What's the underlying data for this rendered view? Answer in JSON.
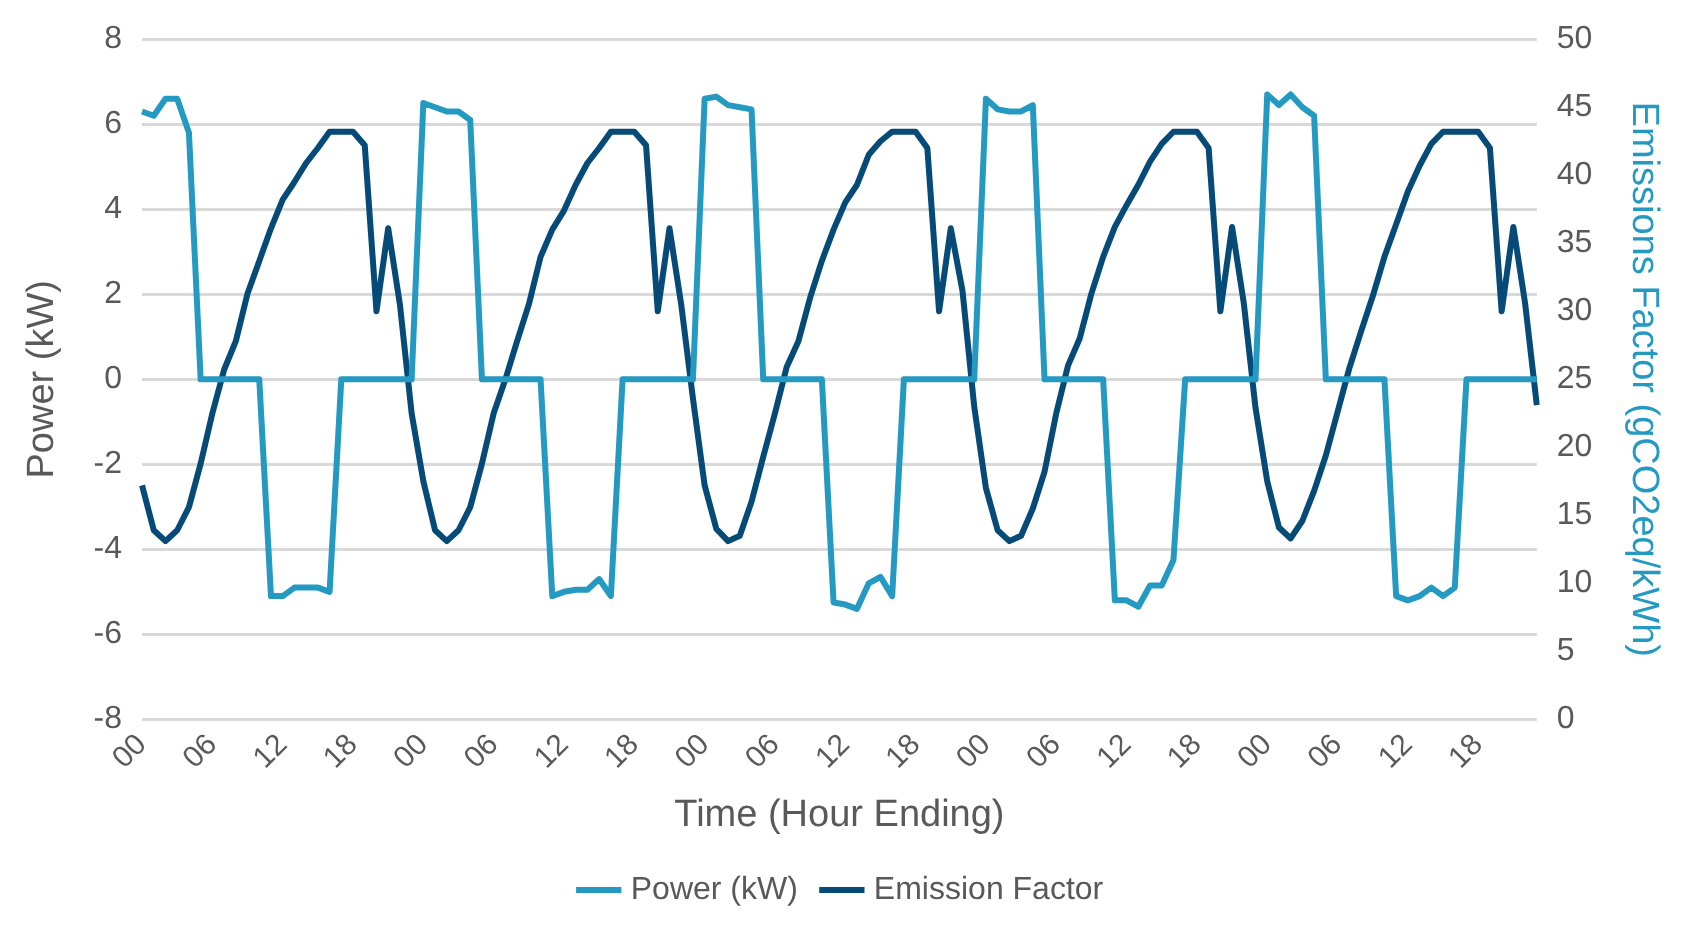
{
  "chart_data": {
    "type": "line",
    "xlabel": "Time (Hour Ending)",
    "ylabel": "Power (kW)",
    "y2label": "Emissions Factor (gCO2eq/kWh)",
    "categories": [
      "00",
      null,
      null,
      null,
      null,
      null,
      "06",
      null,
      null,
      null,
      null,
      null,
      "12",
      null,
      null,
      null,
      null,
      null,
      "18",
      null,
      null,
      null,
      null,
      null,
      "00",
      null,
      null,
      null,
      null,
      null,
      "06",
      null,
      null,
      null,
      null,
      null,
      "12",
      null,
      null,
      null,
      null,
      null,
      "18",
      null,
      null,
      null,
      null,
      null,
      "00",
      null,
      null,
      null,
      null,
      null,
      "06",
      null,
      null,
      null,
      null,
      null,
      "12",
      null,
      null,
      null,
      null,
      null,
      "18",
      null,
      null,
      null,
      null,
      null,
      "00",
      null,
      null,
      null,
      null,
      null,
      "06",
      null,
      null,
      null,
      null,
      null,
      "12",
      null,
      null,
      null,
      null,
      null,
      "18",
      null,
      null,
      null,
      null,
      null,
      "00",
      null,
      null,
      null,
      null,
      null,
      "06",
      null,
      null,
      null,
      null,
      null,
      "12",
      null,
      null,
      null,
      null,
      null,
      "18",
      null,
      null,
      null,
      null,
      null
    ],
    "series": [
      {
        "name": "Power (kW)",
        "color": "#2499c1",
        "values": [
          6.3,
          6.2,
          6.6,
          6.6,
          5.8,
          0,
          0,
          0,
          0,
          0,
          0,
          -5.1,
          -5.1,
          -4.9,
          -4.9,
          -4.9,
          -5.0,
          0,
          0,
          0,
          0,
          0,
          0,
          0,
          6.5,
          6.4,
          6.3,
          6.3,
          6.1,
          0,
          0,
          0,
          0,
          0,
          0,
          -5.1,
          -5.0,
          -4.95,
          -4.95,
          -4.7,
          -5.1,
          0,
          0,
          0,
          0,
          0,
          0,
          0,
          6.6,
          6.65,
          6.45,
          6.4,
          6.35,
          0,
          0,
          0,
          0,
          0,
          0,
          -5.25,
          -5.3,
          -5.4,
          -4.8,
          -4.65,
          -5.1,
          0,
          0,
          0,
          0,
          0,
          0,
          0,
          6.6,
          6.35,
          6.3,
          6.3,
          6.45,
          0,
          0,
          0,
          0,
          0,
          0,
          -5.2,
          -5.2,
          -5.35,
          -4.85,
          -4.85,
          -4.25,
          0,
          0,
          0,
          0,
          0,
          0,
          0,
          6.7,
          6.45,
          6.7,
          6.4,
          6.2,
          0,
          0,
          0,
          0,
          0,
          0,
          -5.1,
          -5.2,
          -5.1,
          -4.9,
          -5.1,
          -4.9,
          0,
          0,
          0,
          0,
          0,
          0,
          0
        ]
      },
      {
        "name": "Emission Factor",
        "color": "#064a78",
        "axis": "y2",
        "values": [
          17.2,
          13.9,
          13.1,
          13.9,
          15.6,
          18.8,
          22.5,
          25.7,
          27.8,
          31.3,
          33.7,
          36.1,
          38.2,
          39.5,
          40.9,
          42.0,
          43.2,
          43.2,
          43.2,
          42.2,
          30.0,
          36.1,
          30.5,
          22.5,
          17.5,
          13.9,
          13.1,
          13.9,
          15.6,
          18.8,
          22.5,
          25.0,
          27.8,
          30.5,
          34.0,
          36.0,
          37.4,
          39.3,
          40.9,
          42.0,
          43.2,
          43.2,
          43.2,
          42.2,
          30.0,
          36.1,
          30.5,
          23.6,
          17.2,
          14.0,
          13.1,
          13.5,
          16.0,
          19.3,
          22.5,
          25.9,
          27.8,
          31.0,
          33.7,
          36.0,
          38.0,
          39.3,
          41.5,
          42.5,
          43.2,
          43.2,
          43.2,
          42.0,
          30.0,
          36.1,
          31.5,
          23.0,
          17.0,
          13.9,
          13.1,
          13.5,
          15.5,
          18.2,
          22.5,
          26.0,
          28.0,
          31.3,
          34.0,
          36.2,
          37.8,
          39.3,
          41.0,
          42.3,
          43.2,
          43.2,
          43.2,
          42.0,
          30.0,
          36.2,
          30.6,
          22.9,
          17.5,
          14.1,
          13.3,
          14.6,
          16.8,
          19.4,
          22.6,
          25.8,
          28.5,
          31.1,
          34.0,
          36.4,
          38.8,
          40.7,
          42.3,
          43.2,
          43.2,
          43.2,
          43.2,
          42.0,
          30.0,
          36.2,
          30.6,
          23.1
        ]
      }
    ],
    "ylim": [
      -8,
      8
    ],
    "yticks": [
      -8,
      -6,
      -4,
      -2,
      0,
      2,
      4,
      6,
      8
    ],
    "y2lim": [
      0,
      50
    ],
    "y2ticks": [
      0,
      5,
      10,
      15,
      20,
      25,
      30,
      35,
      40,
      45,
      50
    ],
    "grid": "y",
    "legend": "bottom",
    "marker": "none",
    "line_style": "solid"
  }
}
